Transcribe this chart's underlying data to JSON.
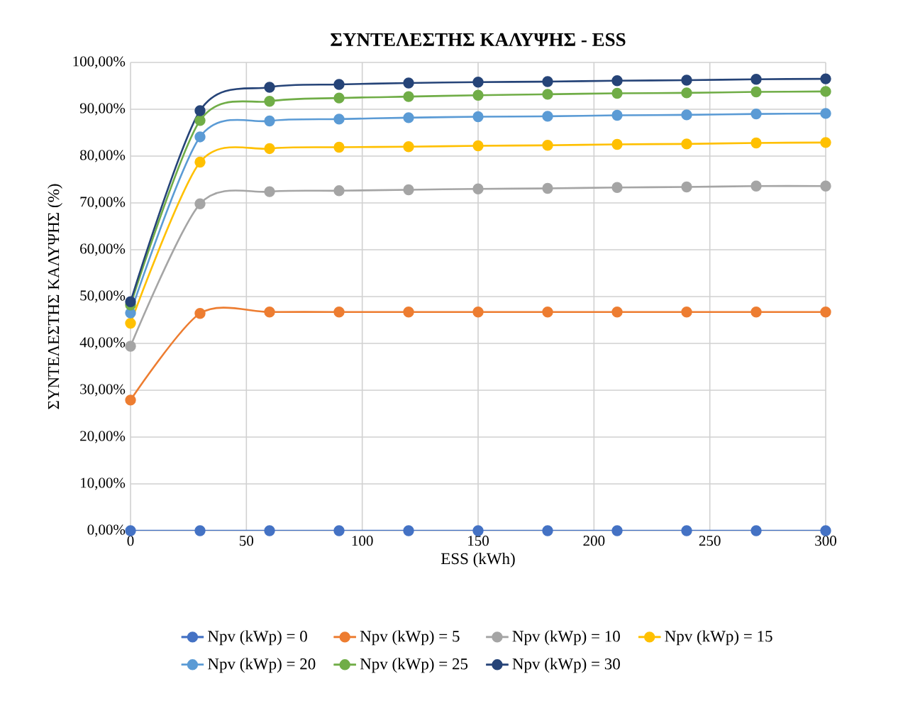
{
  "chart_data": {
    "type": "line",
    "title": "ΣΥΝΤΕΛΕΣΤΗΣ ΚΑΛΥΨΗΣ - ESS",
    "xlabel": "ESS (kWh)",
    "ylabel": "ΣΥΝΤΕΛΕΣΤΗΣ ΚΑΛΥΨΗΣ (%)",
    "x": [
      0,
      30,
      60,
      90,
      120,
      150,
      180,
      210,
      240,
      270,
      300
    ],
    "series": [
      {
        "name": "Npv (kWp) = 0",
        "color": "#4472c4",
        "values": [
          0,
          0,
          0,
          0,
          0,
          0,
          0,
          0,
          0,
          0,
          0
        ]
      },
      {
        "name": "Npv (kWp) = 5",
        "color": "#ed7d31",
        "values": [
          27.9,
          46.4,
          46.7,
          46.7,
          46.7,
          46.7,
          46.7,
          46.7,
          46.7,
          46.7,
          46.7
        ]
      },
      {
        "name": "Npv (kWp) = 10",
        "color": "#a5a5a5",
        "values": [
          39.4,
          69.8,
          72.4,
          72.6,
          72.8,
          73.0,
          73.1,
          73.3,
          73.4,
          73.6,
          73.6
        ]
      },
      {
        "name": "Npv (kWp) = 15",
        "color": "#ffc000",
        "values": [
          44.3,
          78.7,
          81.6,
          81.9,
          82.0,
          82.2,
          82.3,
          82.5,
          82.6,
          82.8,
          82.9
        ]
      },
      {
        "name": "Npv (kWp) = 20",
        "color": "#5b9bd5",
        "values": [
          46.5,
          84.1,
          87.5,
          87.9,
          88.2,
          88.4,
          88.5,
          88.7,
          88.8,
          89.0,
          89.1
        ]
      },
      {
        "name": "Npv (kWp) = 25",
        "color": "#70ad47",
        "values": [
          48.2,
          87.6,
          91.7,
          92.4,
          92.7,
          93.0,
          93.2,
          93.4,
          93.5,
          93.7,
          93.8
        ]
      },
      {
        "name": "Npv (kWp) = 30",
        "color": "#264478",
        "values": [
          48.9,
          89.7,
          94.7,
          95.3,
          95.6,
          95.8,
          95.9,
          96.1,
          96.2,
          96.4,
          96.5
        ]
      }
    ],
    "xlim": [
      0,
      300
    ],
    "xticks": [
      0,
      50,
      100,
      150,
      200,
      250,
      300
    ],
    "ylim": [
      0,
      100
    ],
    "yticks": [
      {
        "value": 0,
        "label": "0,00%"
      },
      {
        "value": 10,
        "label": "10,00%"
      },
      {
        "value": 20,
        "label": "20,00%"
      },
      {
        "value": 30,
        "label": "30,00%"
      },
      {
        "value": 40,
        "label": "40,00%"
      },
      {
        "value": 50,
        "label": "50,00%"
      },
      {
        "value": 60,
        "label": "60,00%"
      },
      {
        "value": 70,
        "label": "70,00%"
      },
      {
        "value": 80,
        "label": "80,00%"
      },
      {
        "value": 90,
        "label": "90,00%"
      },
      {
        "value": 100,
        "label": "100,00%"
      }
    ],
    "grid": true,
    "legend": "bottom",
    "marker": "circle",
    "line_style": "solid"
  }
}
